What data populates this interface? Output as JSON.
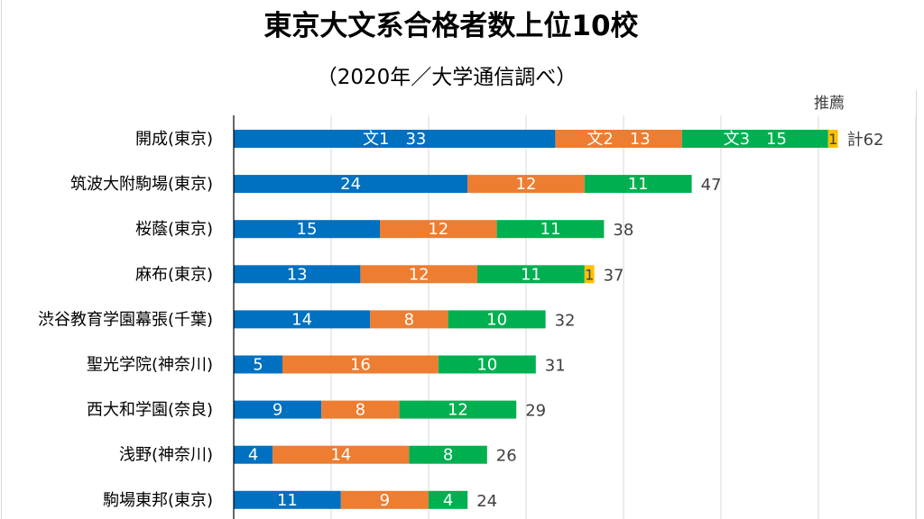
{
  "chart_data": {
    "type": "bar",
    "orientation": "horizontal",
    "stacked": true,
    "title": "東京大文系合格者数上位10校",
    "subtitle": "（2020年／大学通信調べ）",
    "xlabel": "",
    "ylabel": "",
    "xlim": [
      0,
      70
    ],
    "grid": true,
    "legend": "none",
    "annotation_top_right": "推薦",
    "categories": [
      "開成(東京)",
      "筑波大附駒場(東京)",
      "桜蔭(東京)",
      "麻布(東京)",
      "渋谷教育学園幕張(千葉)",
      "聖光学院(神奈川)",
      "西大和学園(奈良)",
      "浅野(神奈川)",
      "駒場東邦(東京)"
    ],
    "series": [
      {
        "name": "文1",
        "color": "#0070C0",
        "values": [
          33,
          24,
          15,
          13,
          14,
          5,
          9,
          4,
          11
        ]
      },
      {
        "name": "文2",
        "color": "#ED7D31",
        "values": [
          13,
          12,
          12,
          12,
          8,
          16,
          8,
          14,
          9
        ]
      },
      {
        "name": "文3",
        "color": "#00B050",
        "values": [
          15,
          11,
          11,
          11,
          10,
          10,
          12,
          8,
          4
        ]
      },
      {
        "name": "推薦",
        "color": "#FFC000",
        "values": [
          1,
          0,
          0,
          1,
          0,
          0,
          0,
          0,
          0
        ]
      }
    ],
    "data_labels": [
      [
        "文1　33",
        "文2　13",
        "文3　15",
        "1"
      ],
      [
        "24",
        "12",
        "11",
        ""
      ],
      [
        "15",
        "12",
        "11",
        ""
      ],
      [
        "13",
        "12",
        "11",
        "1"
      ],
      [
        "14",
        "8",
        "10",
        ""
      ],
      [
        "5",
        "16",
        "10",
        ""
      ],
      [
        "9",
        "8",
        "12",
        ""
      ],
      [
        "4",
        "14",
        "8",
        ""
      ],
      [
        "11",
        "9",
        "4",
        ""
      ]
    ],
    "totals": [
      62,
      47,
      38,
      37,
      32,
      31,
      29,
      26,
      24
    ],
    "total_labels": [
      "計62",
      "47",
      "38",
      "37",
      "32",
      "31",
      "29",
      "26",
      "24"
    ]
  }
}
